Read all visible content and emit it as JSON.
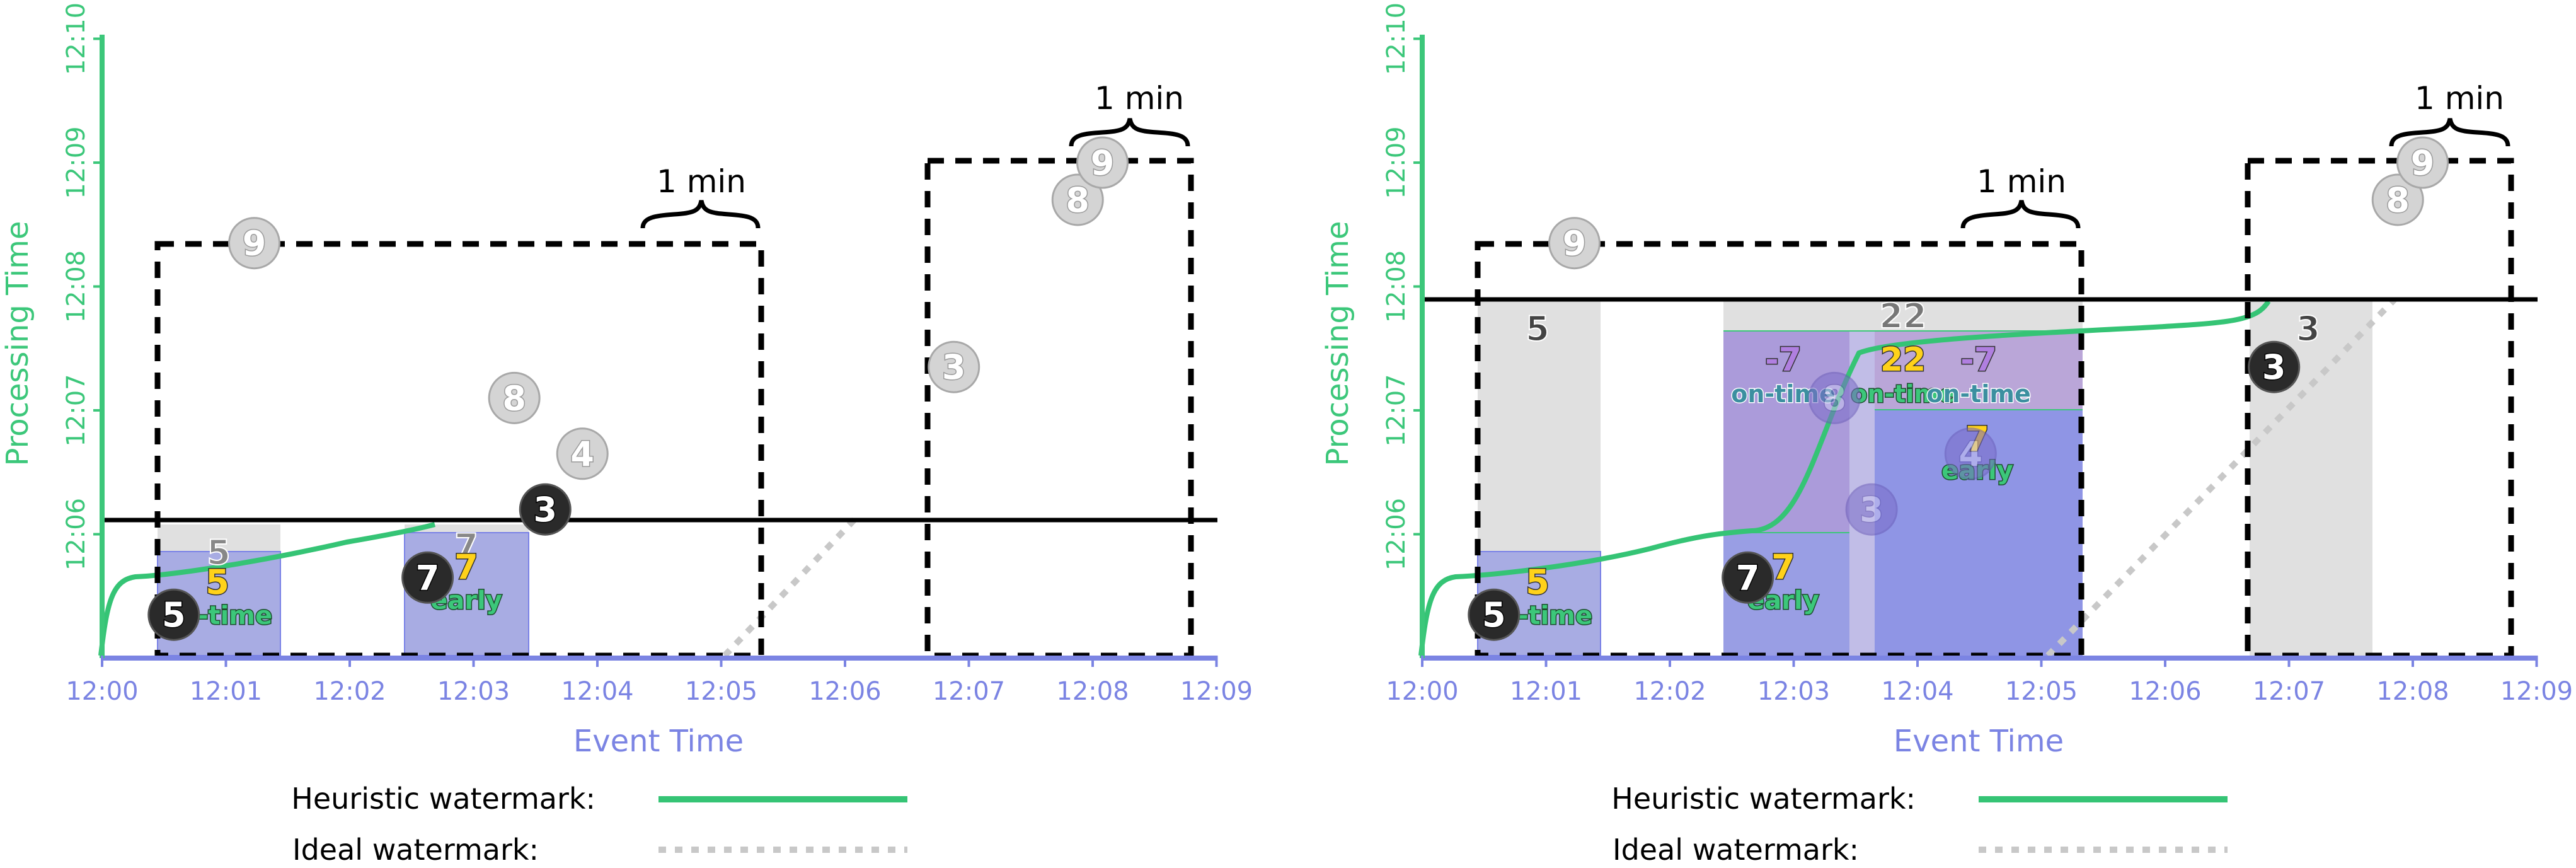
{
  "colors": {
    "processing_axis": "#3cc77a",
    "event_axis": "#7b84e3",
    "heuristic_watermark": "#35c475",
    "ideal_watermark": "#c8c8c8",
    "window_border": "#000000",
    "pane_gray": "#e0e0e0",
    "pane_blue": "#7a82e6",
    "pane_purple": "#b39bd6",
    "element_light": "#d4d4d4",
    "element_dark": "#2a2a2a",
    "yellow_text": "#ffd21a",
    "green_text": "#3cc77a",
    "purple_text": "#b07fe0",
    "teal_text": "#3c8fa0"
  },
  "legend": {
    "heuristic_label": "Heuristic watermark:",
    "ideal_label": "Ideal watermark:"
  },
  "panels": [
    {
      "x_axis": {
        "title": "Event Time",
        "ticks": [
          "12:00",
          "12:01",
          "12:02",
          "12:03",
          "12:04",
          "12:05",
          "12:06",
          "12:07",
          "12:08",
          "12:09"
        ]
      },
      "y_axis": {
        "title": "Processing Time",
        "ticks": [
          "12:06",
          "12:07",
          "12:08",
          "12:09",
          "12:10"
        ]
      },
      "window_labels": [
        "1 min",
        "1 min"
      ],
      "elements": [
        {
          "value": "9",
          "et": 1.0,
          "pt": 3.35,
          "style": "light"
        },
        {
          "value": "8",
          "et": 3.1,
          "pt": 2.1,
          "style": "light"
        },
        {
          "value": "4",
          "et": 3.65,
          "pt": 1.65,
          "style": "light"
        },
        {
          "value": "3",
          "et": 3.35,
          "pt": 1.2,
          "style": "dark"
        },
        {
          "value": "7",
          "et": 2.4,
          "pt": 0.65,
          "style": "dark"
        },
        {
          "value": "5",
          "et": 0.35,
          "pt": 0.35,
          "style": "dark"
        },
        {
          "value": "3",
          "et": 6.65,
          "pt": 2.35,
          "style": "light"
        },
        {
          "value": "8",
          "et": 7.65,
          "pt": 3.7,
          "style": "light"
        },
        {
          "value": "9",
          "et": 7.85,
          "pt": 4.0,
          "style": "light"
        }
      ],
      "results": [
        {
          "value": "5",
          "tag": "on-time"
        },
        {
          "value": "7",
          "tag": "early"
        }
      ],
      "faded_values": [
        "5",
        "7"
      ]
    },
    {
      "x_axis": {
        "title": "Event Time",
        "ticks": [
          "12:00",
          "12:01",
          "12:02",
          "12:03",
          "12:04",
          "12:05",
          "12:06",
          "12:07",
          "12:08",
          "12:09"
        ]
      },
      "y_axis": {
        "title": "Processing Time",
        "ticks": [
          "12:06",
          "12:07",
          "12:08",
          "12:09",
          "12:10"
        ]
      },
      "window_labels": [
        "1 min",
        "1 min"
      ],
      "elements": [
        {
          "value": "9",
          "et": 1.0,
          "pt": 3.35,
          "style": "light"
        },
        {
          "value": "8",
          "et": 7.65,
          "pt": 3.7,
          "style": "light"
        },
        {
          "value": "9",
          "et": 7.85,
          "pt": 4.0,
          "style": "light"
        },
        {
          "value": "3",
          "et": 6.65,
          "pt": 2.35,
          "style": "dark"
        },
        {
          "value": "7",
          "et": 2.4,
          "pt": 0.65,
          "style": "dark"
        },
        {
          "value": "5",
          "et": 0.35,
          "pt": 0.35,
          "style": "dark"
        },
        {
          "value": "8",
          "et": 3.1,
          "pt": 2.1,
          "style": "purple"
        },
        {
          "value": "3",
          "et": 3.4,
          "pt": 1.2,
          "style": "purple"
        },
        {
          "value": "4",
          "et": 4.2,
          "pt": 1.65,
          "style": "purple"
        }
      ],
      "results": [
        {
          "value": "5",
          "tag": "on-time"
        },
        {
          "value": "7",
          "tag": "early"
        },
        {
          "value": "-7",
          "tag": "on-time"
        },
        {
          "value": "22",
          "tag": "on-time"
        },
        {
          "value": "-7",
          "tag": "on-time"
        },
        {
          "value": "7",
          "tag": "early"
        }
      ],
      "pane_values": [
        "5",
        "22",
        "3"
      ]
    }
  ]
}
